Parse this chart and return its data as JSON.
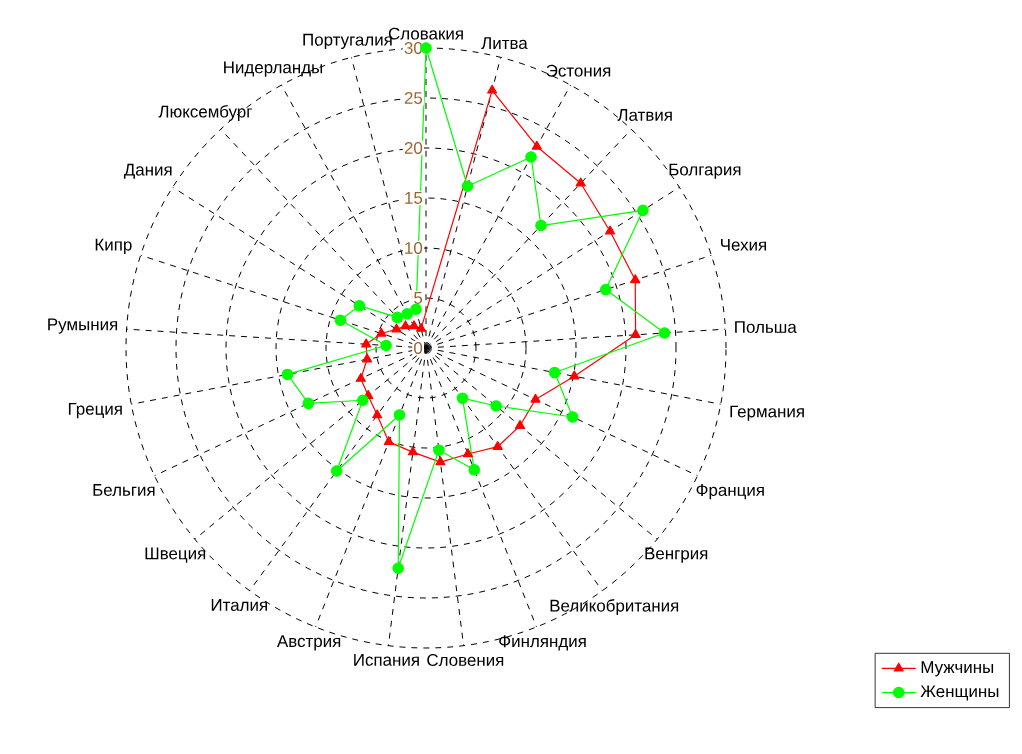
{
  "chart_data": {
    "type": "radar",
    "categories": [
      "Словакия",
      "Литва",
      "Эстония",
      "Латвия",
      "Болгария",
      "Чехия",
      "Польша",
      "Германия",
      "Франция",
      "Венгрия",
      "Великобритания",
      "Финляндия",
      "Словения",
      "Испания",
      "Австрия",
      "Италия",
      "Швеция",
      "Бельгия",
      "Греция",
      "Румыния",
      "Кипр",
      "Дания",
      "Люксембург",
      "Нидерланды",
      "Португалия"
    ],
    "series": [
      {
        "name": "Мужчины",
        "color": "#ff0000",
        "marker": "triangle",
        "values": [
          null,
          26.6,
          23,
          22.6,
          21.8,
          22,
          21,
          15.1,
          12.1,
          12.2,
          12.2,
          11.4,
          11.5,
          10.5,
          10.1,
          8.3,
          7.5,
          7.2,
          6,
          6,
          4.7,
          3.5,
          3,
          2.5,
          2
        ]
      },
      {
        "name": "Женщины",
        "color": "#00ff00",
        "marker": "circle",
        "values": [
          30,
          16.7,
          21.8,
          16.8,
          25.7,
          18.9,
          23.9,
          13.1,
          16.2,
          9.1,
          6.2,
          13.1,
          10.3,
          22.2,
          7.2,
          15.2,
          8.2,
          13,
          14.1,
          4,
          9,
          7.9,
          4.2,
          3.9,
          4
        ]
      }
    ],
    "ylim": [
      0,
      30
    ],
    "yticks": [
      0,
      5,
      10,
      15,
      20,
      25,
      30
    ],
    "grid": true,
    "legend": "bottom right"
  }
}
